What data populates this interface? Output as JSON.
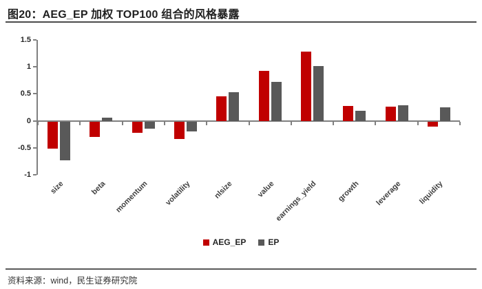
{
  "header": {
    "title": "图20：AEG_EP 加权 TOP100 组合的风格暴露"
  },
  "footer": {
    "source": "资料来源：wind，民生证券研究院"
  },
  "colors": {
    "series_red": "#c00000",
    "series_gray": "#595959",
    "axis": "#7f7f7f",
    "title": "#1f1f1f"
  },
  "legend": [
    {
      "label": "AEG_EP",
      "color": "#c00000"
    },
    {
      "label": "EP",
      "color": "#595959"
    }
  ],
  "chart_data": {
    "type": "bar",
    "title": "图20：AEG_EP 加权 TOP100 组合的风格暴露",
    "categories": [
      "size",
      "beta",
      "momentum",
      "volatility",
      "nlsize",
      "value",
      "earnings_yield",
      "growth",
      "leverage",
      "liquidity"
    ],
    "series": [
      {
        "name": "AEG_EP",
        "color": "#c00000",
        "values": [
          -0.5,
          -0.28,
          -0.21,
          -0.33,
          0.46,
          0.93,
          1.28,
          0.27,
          0.26,
          -0.1
        ]
      },
      {
        "name": "EP",
        "color": "#595959",
        "values": [
          -0.72,
          0.06,
          -0.13,
          -0.18,
          0.53,
          0.72,
          1.01,
          0.18,
          0.29,
          0.25
        ]
      }
    ],
    "xlabel": "",
    "ylabel": "",
    "ylim": [
      -1,
      1.5
    ],
    "yticks": [
      1.5,
      1,
      0.5,
      0,
      -0.5,
      -1
    ],
    "grid": false,
    "legend_position": "bottom",
    "category_label_rotation_deg": -45
  }
}
